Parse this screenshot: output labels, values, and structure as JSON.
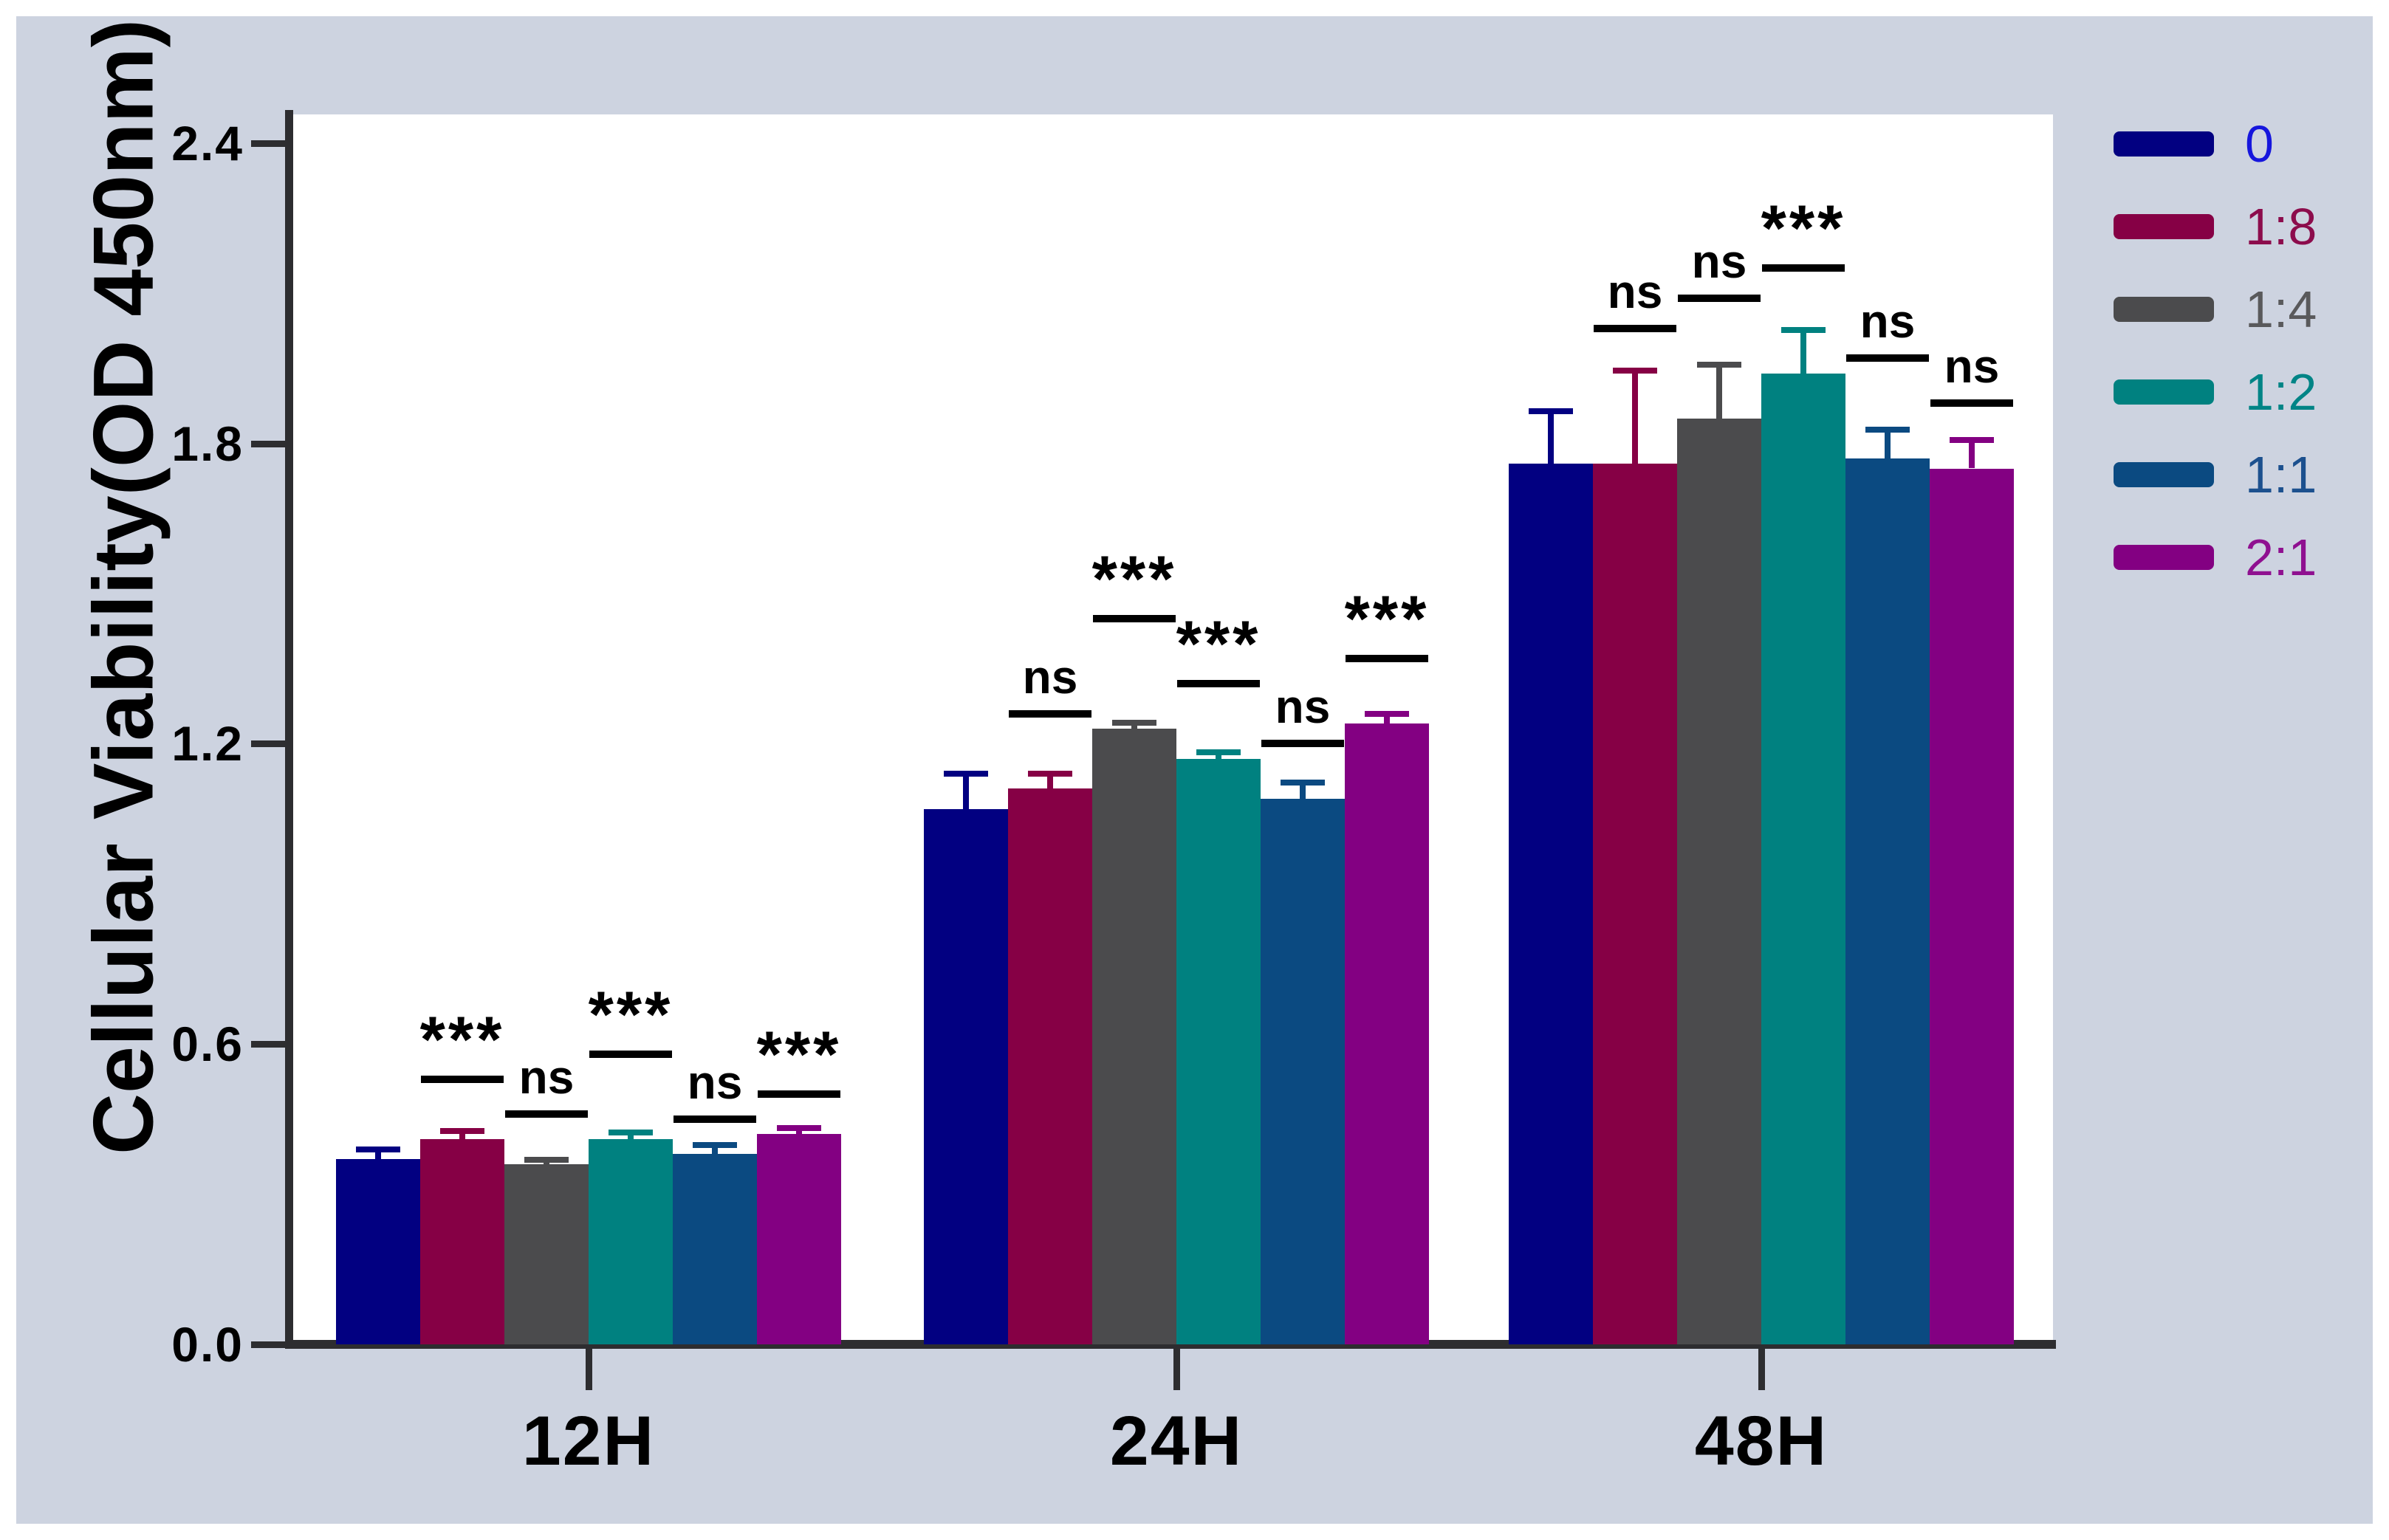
{
  "figure": {
    "background_color": "#ffffff",
    "panel_color": "#cdd3e0",
    "plot_background": "#ffffff",
    "axis_color": "#2d2d30",
    "text_color": "#000000"
  },
  "chart_data": {
    "type": "bar",
    "title": "",
    "xlabel": "",
    "ylabel": "Cellular Viability(OD 450nm)",
    "ylim": [
      0,
      2.4
    ],
    "yticks": [
      0,
      0.6,
      1.2,
      1.8,
      2.4
    ],
    "ytick_labels": [
      "0.0",
      "0.6",
      "1.2",
      "1.8",
      "2.4"
    ],
    "categories": [
      "12H",
      "24H",
      "48H"
    ],
    "grid": false,
    "legend_position": "right",
    "error_bars": "upper sd",
    "series": [
      {
        "name": "0",
        "color": "#020081",
        "label_color": "#1616dd",
        "values": [
          0.37,
          1.07,
          1.76
        ],
        "errors": [
          0.02,
          0.07,
          0.105
        ],
        "sig": [
          null,
          null,
          null
        ],
        "sig_line": [
          null,
          null,
          null
        ]
      },
      {
        "name": "1:8",
        "color": "#860045",
        "label_color": "#8c0c4c",
        "values": [
          0.41,
          1.11,
          1.76
        ],
        "errors": [
          0.016,
          0.03,
          0.185
        ],
        "sig": [
          "***",
          "ns",
          "ns"
        ],
        "sig_line": [
          0.53,
          1.26,
          2.03
        ]
      },
      {
        "name": "1:4",
        "color": "#4b4b4d",
        "label_color": "#59595b",
        "values": [
          0.36,
          1.23,
          1.85
        ],
        "errors": [
          0.008,
          0.012,
          0.107
        ],
        "sig": [
          "ns",
          "***",
          "ns"
        ],
        "sig_line": [
          0.46,
          1.45,
          2.09
        ]
      },
      {
        "name": "1:2",
        "color": "#008180",
        "label_color": "#008486",
        "values": [
          0.41,
          1.17,
          1.94
        ],
        "errors": [
          0.013,
          0.013,
          0.086
        ],
        "sig": [
          "***",
          "***",
          "***"
        ],
        "sig_line": [
          0.58,
          1.32,
          2.15
        ]
      },
      {
        "name": "1:1",
        "color": "#0b4a81",
        "label_color": "#1c508e",
        "values": [
          0.38,
          1.09,
          1.77
        ],
        "errors": [
          0.018,
          0.032,
          0.057
        ],
        "sig": [
          "ns",
          "ns",
          "ns"
        ],
        "sig_line": [
          0.45,
          1.2,
          1.97
        ]
      },
      {
        "name": "2:1",
        "color": "#830082",
        "label_color": "#8f1090",
        "values": [
          0.42,
          1.24,
          1.75
        ],
        "errors": [
          0.012,
          0.02,
          0.057
        ],
        "sig": [
          "***",
          "***",
          "ns"
        ],
        "sig_line": [
          0.5,
          1.37,
          1.88
        ]
      }
    ]
  }
}
